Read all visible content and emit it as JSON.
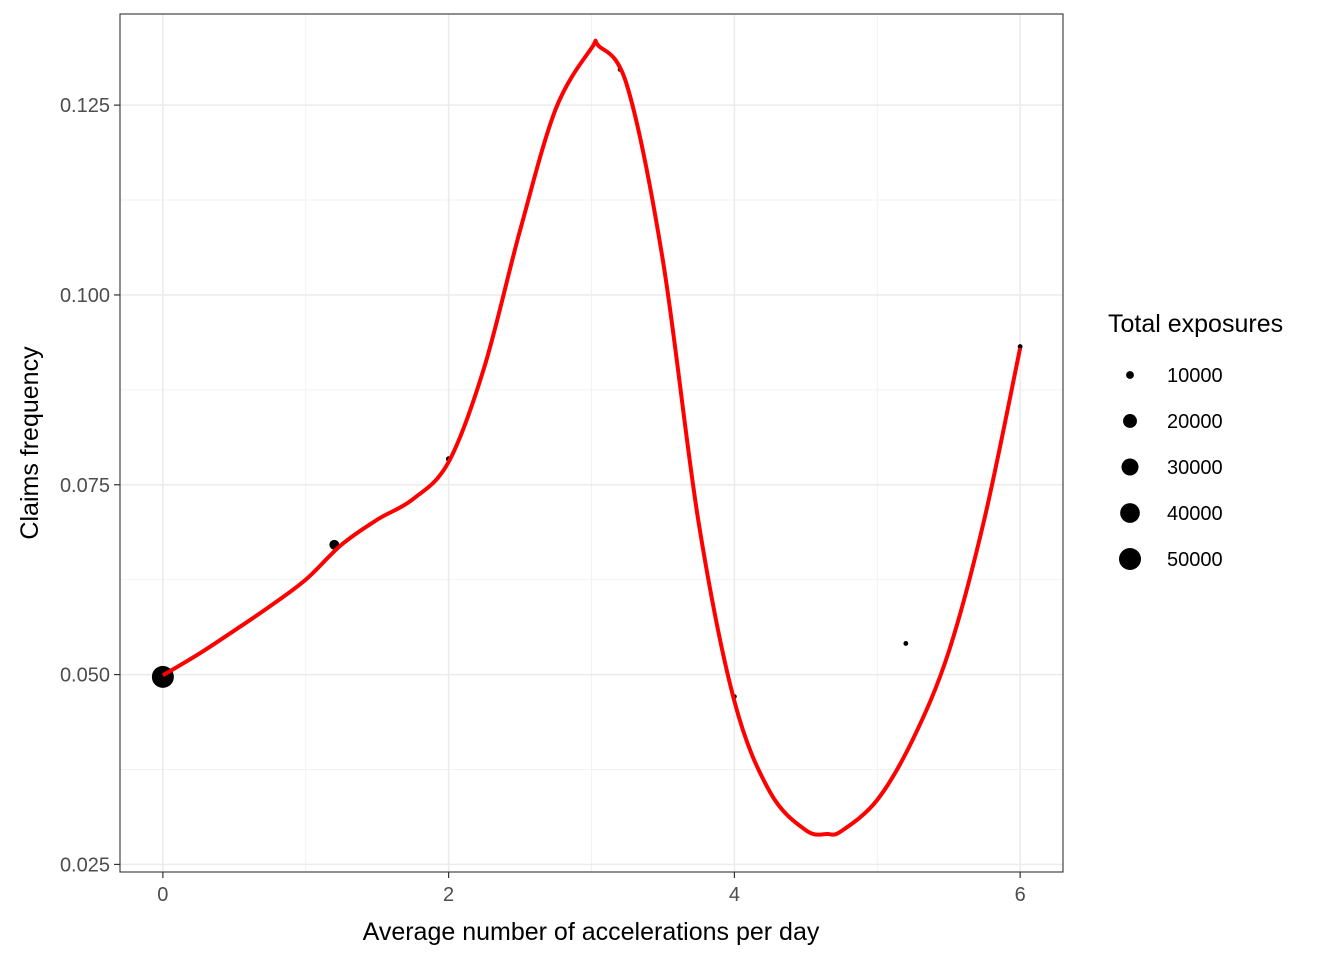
{
  "chart_data": {
    "type": "scatter",
    "xlabel": "Average number of accelerations per day",
    "ylabel": "Claims frequency",
    "xlim": [
      -0.3,
      6.3
    ],
    "ylim": [
      0.024,
      0.137
    ],
    "x_ticks": [
      0,
      2,
      4,
      6
    ],
    "x_tick_labels": [
      "0",
      "2",
      "4",
      "6"
    ],
    "y_ticks": [
      0.025,
      0.05,
      0.075,
      0.1,
      0.125
    ],
    "y_tick_labels": [
      "0.025",
      "0.050",
      "0.075",
      "0.100",
      "0.125"
    ],
    "grid": true,
    "points": [
      {
        "x": 0.0,
        "y": 0.0497,
        "exposure": 50000
      },
      {
        "x": 1.2,
        "y": 0.0671,
        "exposure": 10000
      },
      {
        "x": 2.0,
        "y": 0.0784,
        "exposure": 3000
      },
      {
        "x": 3.2,
        "y": 0.1297,
        "exposure": 500
      },
      {
        "x": 4.0,
        "y": 0.0471,
        "exposure": 1500
      },
      {
        "x": 5.2,
        "y": 0.0541,
        "exposure": 1500
      },
      {
        "x": 6.0,
        "y": 0.0932,
        "exposure": 1500
      }
    ],
    "smooth_line": {
      "color": "#ff0000",
      "x": [
        0,
        0.25,
        0.5,
        0.75,
        1.0,
        1.25,
        1.5,
        1.75,
        2.0,
        2.25,
        2.5,
        2.75,
        3.0,
        3.05,
        3.25,
        3.5,
        3.75,
        4.0,
        4.25,
        4.5,
        4.65,
        4.75,
        5.0,
        5.25,
        5.5,
        5.75,
        6.0
      ],
      "y": [
        0.0499,
        0.0527,
        0.0558,
        0.059,
        0.0625,
        0.0671,
        0.0704,
        0.0731,
        0.078,
        0.0905,
        0.1085,
        0.1245,
        0.1325,
        0.1328,
        0.1275,
        0.1045,
        0.07,
        0.0465,
        0.0345,
        0.0295,
        0.029,
        0.0294,
        0.0335,
        0.0415,
        0.053,
        0.0705,
        0.093
      ]
    },
    "legend": {
      "title": "Total exposures",
      "placement": "right",
      "entries": [
        {
          "label": "10000",
          "value": 10000
        },
        {
          "label": "20000",
          "value": 20000
        },
        {
          "label": "30000",
          "value": 30000
        },
        {
          "label": "40000",
          "value": 40000
        },
        {
          "label": "50000",
          "value": 50000
        }
      ]
    }
  }
}
